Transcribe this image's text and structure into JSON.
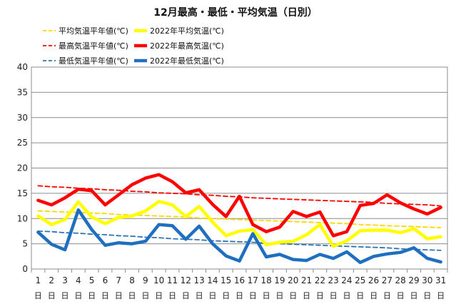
{
  "chart_data": {
    "type": "line",
    "title": "12月最高・最低・平均気温（日別）",
    "xlabel": "",
    "ylabel": "",
    "ylim": [
      0,
      40
    ],
    "y_ticks": [
      0,
      5,
      10,
      15,
      20,
      25,
      30,
      35,
      40
    ],
    "x_day_suffix": "日",
    "grid": true,
    "legend_position": "top",
    "categories": [
      1,
      2,
      3,
      4,
      5,
      6,
      7,
      8,
      9,
      10,
      11,
      12,
      13,
      14,
      15,
      16,
      17,
      18,
      19,
      20,
      21,
      22,
      23,
      24,
      25,
      26,
      27,
      28,
      29,
      30,
      31
    ],
    "series": [
      {
        "name": "平均気温平年値(℃)",
        "color": "#ffd700",
        "style": "dashed",
        "values": [
          11.5,
          11.4,
          11.3,
          11.2,
          11.1,
          11.0,
          10.8,
          10.7,
          10.6,
          10.5,
          10.4,
          10.3,
          10.1,
          10.0,
          9.9,
          9.8,
          9.7,
          9.6,
          9.5,
          9.4,
          9.3,
          9.2,
          9.1,
          9.0,
          8.8,
          8.7,
          8.6,
          8.5,
          8.4,
          8.3,
          8.2
        ]
      },
      {
        "name": "2022年平均気温(℃)",
        "color": "#ffff00",
        "style": "solid",
        "values": [
          10.5,
          8.8,
          9.8,
          13.3,
          10.3,
          9.0,
          10.2,
          10.5,
          11.5,
          13.4,
          12.7,
          10.4,
          12.4,
          9.3,
          6.6,
          7.5,
          7.8,
          4.8,
          5.3,
          5.5,
          6.8,
          8.8,
          4.5,
          5.6,
          7.6,
          7.7,
          7.7,
          7.2,
          8.0,
          6.0,
          6.4
        ]
      },
      {
        "name": "最高気温平年値(℃)",
        "color": "#ff0000",
        "style": "dashed",
        "values": [
          16.5,
          16.3,
          16.2,
          16.0,
          15.9,
          15.7,
          15.6,
          15.4,
          15.3,
          15.1,
          15.0,
          14.9,
          14.7,
          14.6,
          14.4,
          14.3,
          14.1,
          14.0,
          13.9,
          13.8,
          13.7,
          13.6,
          13.5,
          13.4,
          13.3,
          13.2,
          13.0,
          12.9,
          12.8,
          12.7,
          12.5
        ]
      },
      {
        "name": "2022年最高気温(℃)",
        "color": "#ff0000",
        "style": "solid",
        "values": [
          13.6,
          12.7,
          14.1,
          15.8,
          15.5,
          12.7,
          14.7,
          16.7,
          18.0,
          18.7,
          17.3,
          15.1,
          15.7,
          12.8,
          10.4,
          14.4,
          8.8,
          7.4,
          8.3,
          11.4,
          10.4,
          11.3,
          6.6,
          7.4,
          12.6,
          13.0,
          14.7,
          13.1,
          11.9,
          10.9,
          12.2
        ]
      },
      {
        "name": "最低気温平年値(℃)",
        "color": "#2e75b6",
        "style": "dashed",
        "values": [
          7.5,
          7.4,
          7.2,
          7.1,
          6.9,
          6.8,
          6.6,
          6.5,
          6.3,
          6.2,
          6.0,
          5.9,
          5.8,
          5.6,
          5.5,
          5.4,
          5.3,
          5.1,
          5.0,
          4.9,
          4.8,
          4.7,
          4.6,
          4.5,
          4.4,
          4.3,
          4.2,
          4.0,
          3.9,
          3.8,
          3.7
        ]
      },
      {
        "name": "2022年最低気温(℃)",
        "color": "#1f6fc0",
        "style": "solid",
        "values": [
          7.3,
          4.9,
          3.8,
          11.7,
          7.8,
          4.7,
          5.2,
          5.0,
          5.5,
          8.8,
          8.6,
          5.9,
          8.5,
          5.0,
          2.6,
          1.6,
          7.0,
          2.4,
          2.9,
          1.9,
          1.7,
          2.9,
          2.1,
          3.4,
          1.3,
          2.5,
          3.0,
          3.3,
          4.2,
          2.1,
          1.4
        ]
      }
    ]
  }
}
